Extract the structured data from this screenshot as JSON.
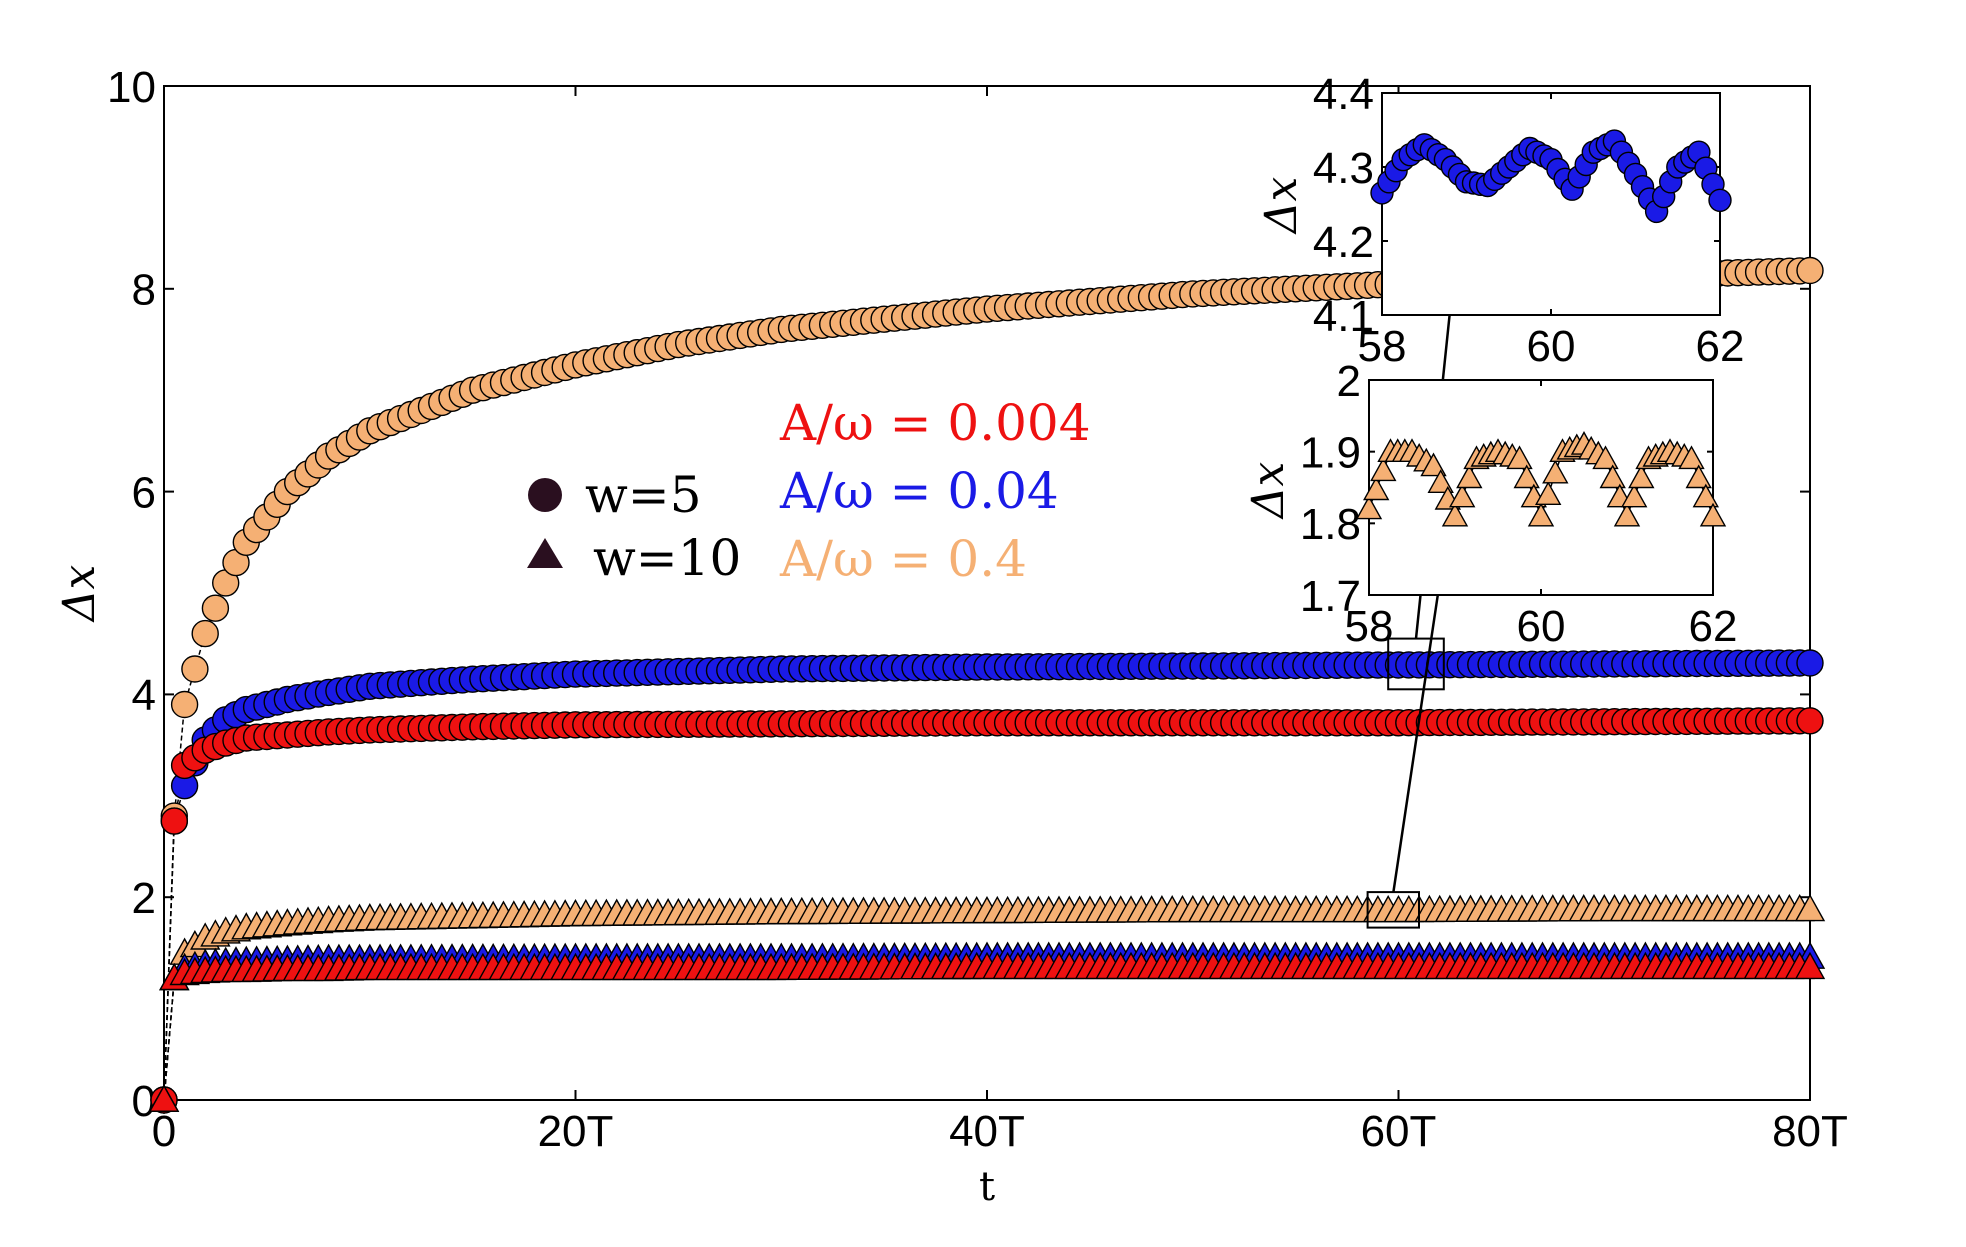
{
  "chart_data": [
    {
      "type": "scatter",
      "name": "main",
      "xlabel": "t",
      "ylabel": "Δx",
      "xlim": [
        0,
        80
      ],
      "ylim": [
        0,
        10
      ],
      "x_ticks": [
        {
          "value": 0,
          "label": "0"
        },
        {
          "value": 20,
          "label": "20T"
        },
        {
          "value": 40,
          "label": "40T"
        },
        {
          "value": 60,
          "label": "60T"
        },
        {
          "value": 80,
          "label": "80T"
        }
      ],
      "y_ticks": [
        {
          "value": 0,
          "label": "0"
        },
        {
          "value": 2,
          "label": "2"
        },
        {
          "value": 4,
          "label": "4"
        },
        {
          "value": 6,
          "label": "6"
        },
        {
          "value": 8,
          "label": "8"
        },
        {
          "value": 10,
          "label": "10"
        }
      ],
      "marker_legend": [
        {
          "marker": "circle",
          "label": "w=5"
        },
        {
          "marker": "triangle",
          "label": "w=10"
        }
      ],
      "color_legend": [
        {
          "label": "A/ω = 0.004",
          "color": "#ee1111"
        },
        {
          "label": "A/ω = 0.04",
          "color": "#1a1ae6"
        },
        {
          "label": "A/ω = 0.4",
          "color": "#f5b074"
        }
      ],
      "series": [
        {
          "name": "w=5, A/ω=0.4",
          "marker": "circle",
          "color": "#f5b074",
          "x": [
            0,
            0.5,
            1,
            2,
            3,
            4,
            6,
            8,
            10,
            15,
            20,
            25,
            30,
            40,
            50,
            60,
            70,
            80
          ],
          "y": [
            0,
            2.8,
            3.9,
            4.6,
            5.1,
            5.5,
            6.0,
            6.35,
            6.6,
            7.0,
            7.25,
            7.45,
            7.6,
            7.8,
            7.95,
            8.05,
            8.12,
            8.18
          ]
        },
        {
          "name": "w=5, A/ω=0.04",
          "marker": "circle",
          "color": "#1a1ae6",
          "x": [
            0,
            0.5,
            1,
            2,
            3,
            4,
            6,
            8,
            10,
            15,
            20,
            30,
            40,
            50,
            60,
            70,
            80
          ],
          "y": [
            0,
            2.75,
            3.1,
            3.55,
            3.75,
            3.85,
            3.95,
            4.02,
            4.08,
            4.15,
            4.2,
            4.25,
            4.27,
            4.28,
            4.29,
            4.3,
            4.31
          ]
        },
        {
          "name": "w=5, A/ω=0.004",
          "marker": "circle",
          "color": "#ee1111",
          "x": [
            0,
            0.5,
            1,
            2,
            3,
            4,
            6,
            8,
            10,
            15,
            20,
            30,
            40,
            50,
            60,
            70,
            80
          ],
          "y": [
            0,
            2.75,
            3.3,
            3.45,
            3.52,
            3.57,
            3.6,
            3.63,
            3.65,
            3.68,
            3.7,
            3.71,
            3.72,
            3.72,
            3.72,
            3.73,
            3.74
          ]
        },
        {
          "name": "w=10, A/ω=0.4",
          "marker": "triangle",
          "color": "#f5b074",
          "x": [
            0,
            0.5,
            1,
            2,
            3,
            4,
            6,
            8,
            10,
            20,
            30,
            40,
            50,
            60,
            70,
            80
          ],
          "y": [
            0,
            1.2,
            1.45,
            1.6,
            1.66,
            1.7,
            1.74,
            1.77,
            1.79,
            1.83,
            1.85,
            1.86,
            1.87,
            1.87,
            1.88,
            1.88
          ]
        },
        {
          "name": "w=10, A/ω=0.04",
          "marker": "triangle",
          "color": "#1a1ae6",
          "x": [
            0,
            0.5,
            1,
            2,
            3,
            4,
            6,
            8,
            10,
            20,
            30,
            40,
            50,
            60,
            70,
            80
          ],
          "y": [
            0,
            1.2,
            1.3,
            1.34,
            1.36,
            1.37,
            1.38,
            1.39,
            1.39,
            1.4,
            1.4,
            1.41,
            1.41,
            1.41,
            1.41,
            1.41
          ]
        },
        {
          "name": "w=10, A/ω=0.004",
          "marker": "triangle",
          "color": "#ee1111",
          "x": [
            0,
            0.5,
            1,
            2,
            3,
            4,
            6,
            8,
            10,
            20,
            30,
            40,
            50,
            60,
            70,
            80
          ],
          "y": [
            0,
            1.2,
            1.25,
            1.27,
            1.28,
            1.28,
            1.29,
            1.29,
            1.3,
            1.3,
            1.3,
            1.31,
            1.31,
            1.31,
            1.31,
            1.31
          ]
        }
      ],
      "zoom_boxes": [
        {
          "xlim": [
            59.5,
            62.2
          ],
          "ylim": [
            4.05,
            4.55
          ],
          "links_to": "inset_top"
        },
        {
          "xlim": [
            58.5,
            61.0
          ],
          "ylim": [
            1.7,
            2.05
          ],
          "links_to": "inset_bottom"
        }
      ]
    },
    {
      "type": "scatter",
      "name": "inset_top",
      "ylabel": "Δx",
      "xlim": [
        58,
        62
      ],
      "ylim": [
        4.1,
        4.4
      ],
      "x_ticks": [
        {
          "value": 58,
          "label": "58"
        },
        {
          "value": 60,
          "label": "60"
        },
        {
          "value": 62,
          "label": "62"
        }
      ],
      "y_ticks": [
        {
          "value": 4.1,
          "label": "4.1"
        },
        {
          "value": 4.2,
          "label": "4.2"
        },
        {
          "value": 4.3,
          "label": "4.3"
        },
        {
          "value": 4.4,
          "label": "4.4"
        }
      ],
      "series": [
        {
          "name": "w=5, A/ω=0.04",
          "marker": "circle",
          "color": "#1a1ae6",
          "x": [
            58.0,
            58.25,
            58.5,
            58.75,
            59.0,
            59.25,
            59.5,
            59.75,
            60.0,
            60.25,
            60.5,
            60.75,
            61.0,
            61.25,
            61.5,
            61.75,
            62.0
          ],
          "y": [
            4.265,
            4.31,
            4.33,
            4.31,
            4.28,
            4.275,
            4.3,
            4.325,
            4.31,
            4.27,
            4.32,
            4.335,
            4.29,
            4.24,
            4.3,
            4.32,
            4.255
          ]
        }
      ]
    },
    {
      "type": "scatter",
      "name": "inset_bottom",
      "ylabel": "Δx",
      "xlim": [
        58,
        62
      ],
      "ylim": [
        1.7,
        2.0
      ],
      "x_ticks": [
        {
          "value": 58,
          "label": "58"
        },
        {
          "value": 60,
          "label": "60"
        },
        {
          "value": 62,
          "label": "62"
        }
      ],
      "y_ticks": [
        {
          "value": 1.7,
          "label": "1.7"
        },
        {
          "value": 1.8,
          "label": "1.8"
        },
        {
          "value": 1.9,
          "label": "1.9"
        },
        {
          "value": 2.0,
          "label": "2"
        }
      ],
      "series": [
        {
          "name": "w=10, A/ω=0.4",
          "marker": "triangle",
          "color": "#f5b074",
          "x": [
            58.0,
            58.25,
            58.5,
            58.75,
            59.0,
            59.25,
            59.5,
            59.75,
            60.0,
            60.25,
            60.5,
            60.75,
            61.0,
            61.25,
            61.5,
            61.75,
            62.0
          ],
          "y": [
            1.82,
            1.9,
            1.9,
            1.88,
            1.81,
            1.89,
            1.9,
            1.89,
            1.81,
            1.9,
            1.91,
            1.89,
            1.81,
            1.89,
            1.9,
            1.89,
            1.81
          ]
        }
      ]
    }
  ]
}
